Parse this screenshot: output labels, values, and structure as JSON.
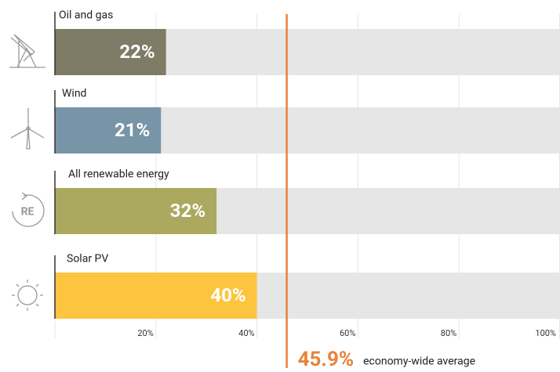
{
  "chart_data": {
    "type": "bar",
    "categories": [
      "Oil and gas",
      "Wind",
      "All renewable energy",
      "Solar PV"
    ],
    "values": [
      22,
      21,
      32,
      40
    ],
    "value_labels": [
      "22%",
      "21%",
      "32%",
      "40%"
    ],
    "colors": [
      "#7e7b66",
      "#7795a7",
      "#aaa95f",
      "#fdc43f"
    ],
    "xlim": [
      0,
      100
    ],
    "xticks": [
      {
        "value": 20,
        "label": "20%"
      },
      {
        "value": 40,
        "label": "40%"
      },
      {
        "value": 60,
        "label": "60%"
      },
      {
        "value": 80,
        "label": "80%"
      },
      {
        "value": 100,
        "label": "100%"
      }
    ],
    "grid": true,
    "reference_line": {
      "value": 45.9,
      "label": "45.9%",
      "text": "economy-wide average",
      "color": "#e8833a"
    }
  }
}
